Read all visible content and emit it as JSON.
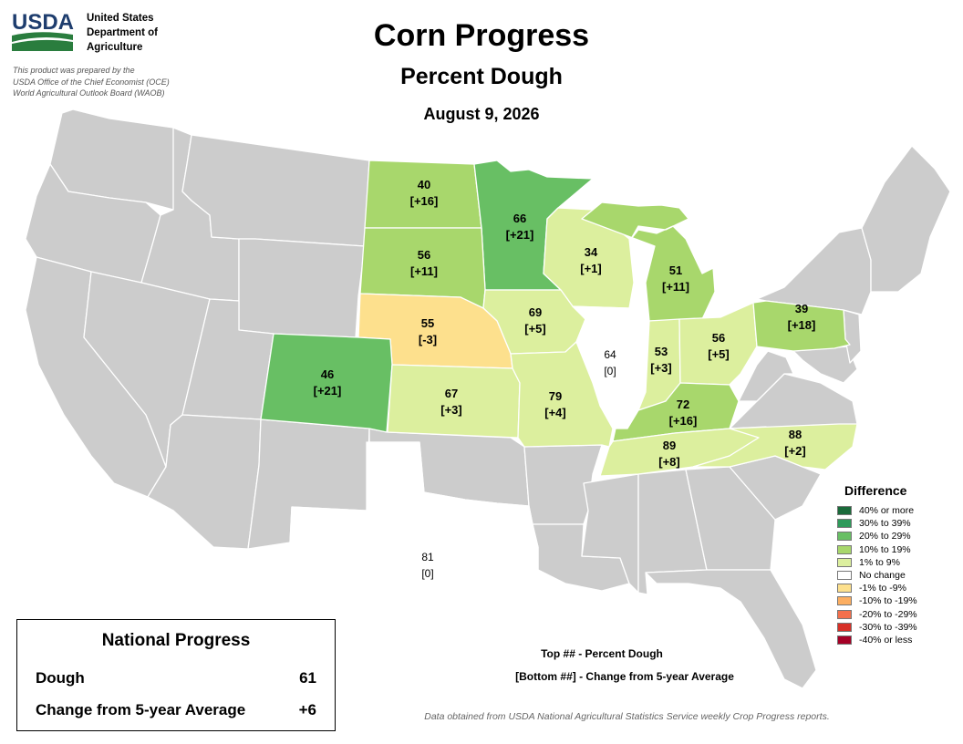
{
  "agency": {
    "logo_text": "USDA",
    "name_lines": [
      "United States",
      "Department of",
      "Agriculture"
    ],
    "prepared_lines": [
      "This product was prepared by the",
      "USDA Office of the Chief Economist (OCE)",
      "World Agricultural Outlook Board (WAOB)"
    ]
  },
  "title": "Corn Progress",
  "subtitle": "Percent Dough",
  "date": "August 9, 2026",
  "colors": {
    "no_data": "#cccccc",
    "state_border": "#ffffff",
    "ge40": "#1a6a3a",
    "30_39": "#2e9a5a",
    "20_29": "#68bf64",
    "10_19": "#a8d76c",
    "1_9": "#dcef9e",
    "zero": "#ffffff",
    "neg1_9": "#fde08d",
    "neg10_19": "#fcae61",
    "neg20_29": "#f3704c",
    "neg30_39": "#d73027",
    "le_neg40": "#a50026"
  },
  "states": [
    {
      "name": "North Dakota",
      "value": "40",
      "change": "[+16]",
      "class": "10_19"
    },
    {
      "name": "Minnesota",
      "value": "66",
      "change": "[+21]",
      "class": "20_29"
    },
    {
      "name": "Wisconsin",
      "value": "34",
      "change": "[+1]",
      "class": "1_9"
    },
    {
      "name": "Michigan",
      "value": "51",
      "change": "[+11]",
      "class": "10_19"
    },
    {
      "name": "South Dakota",
      "value": "56",
      "change": "[+11]",
      "class": "10_19"
    },
    {
      "name": "Iowa",
      "value": "69",
      "change": "[+5]",
      "class": "1_9"
    },
    {
      "name": "Nebraska",
      "value": "55",
      "change": "[-3]",
      "class": "neg1_9"
    },
    {
      "name": "Illinois",
      "value": "64",
      "change": "[0]",
      "class": "zero"
    },
    {
      "name": "Indiana",
      "value": "53",
      "change": "[+3]",
      "class": "1_9"
    },
    {
      "name": "Ohio",
      "value": "56",
      "change": "[+5]",
      "class": "1_9"
    },
    {
      "name": "Pennsylvania",
      "value": "39",
      "change": "[+18]",
      "class": "10_19"
    },
    {
      "name": "Colorado",
      "value": "46",
      "change": "[+21]",
      "class": "20_29"
    },
    {
      "name": "Kansas",
      "value": "67",
      "change": "[+3]",
      "class": "1_9"
    },
    {
      "name": "Missouri",
      "value": "79",
      "change": "[+4]",
      "class": "1_9"
    },
    {
      "name": "Kentucky",
      "value": "72",
      "change": "[+16]",
      "class": "10_19"
    },
    {
      "name": "Tennessee",
      "value": "89",
      "change": "[+8]",
      "class": "1_9"
    },
    {
      "name": "North Carolina",
      "value": "88",
      "change": "[+2]",
      "class": "1_9"
    },
    {
      "name": "Texas",
      "value": "81",
      "change": "[0]",
      "class": "zero"
    }
  ],
  "legend": {
    "title": "Difference",
    "items": [
      {
        "label": "40% or more",
        "class": "ge40"
      },
      {
        "label": "30% to 39%",
        "class": "30_39"
      },
      {
        "label": "20% to 29%",
        "class": "20_29"
      },
      {
        "label": "10% to 19%",
        "class": "10_19"
      },
      {
        "label": "1% to 9%",
        "class": "1_9"
      },
      {
        "label": "No change",
        "class": "zero"
      },
      {
        "label": "-1% to -9%",
        "class": "neg1_9"
      },
      {
        "label": "-10% to -19%",
        "class": "neg10_19"
      },
      {
        "label": "-20% to -29%",
        "class": "neg20_29"
      },
      {
        "label": "-30% to -39%",
        "class": "neg30_39"
      },
      {
        "label": "-40% or less",
        "class": "le_neg40"
      }
    ]
  },
  "national": {
    "title": "National Progress",
    "rows": [
      {
        "label": "Dough",
        "value": "61"
      },
      {
        "label": "Change from 5-year Average",
        "value": "+6"
      }
    ]
  },
  "key": {
    "top": "Top ## - Percent Dough",
    "bottom": "[Bottom ##] - Change from 5-year Average"
  },
  "source": "Data obtained from USDA National Agricultural Statistics Service weekly Crop Progress reports."
}
